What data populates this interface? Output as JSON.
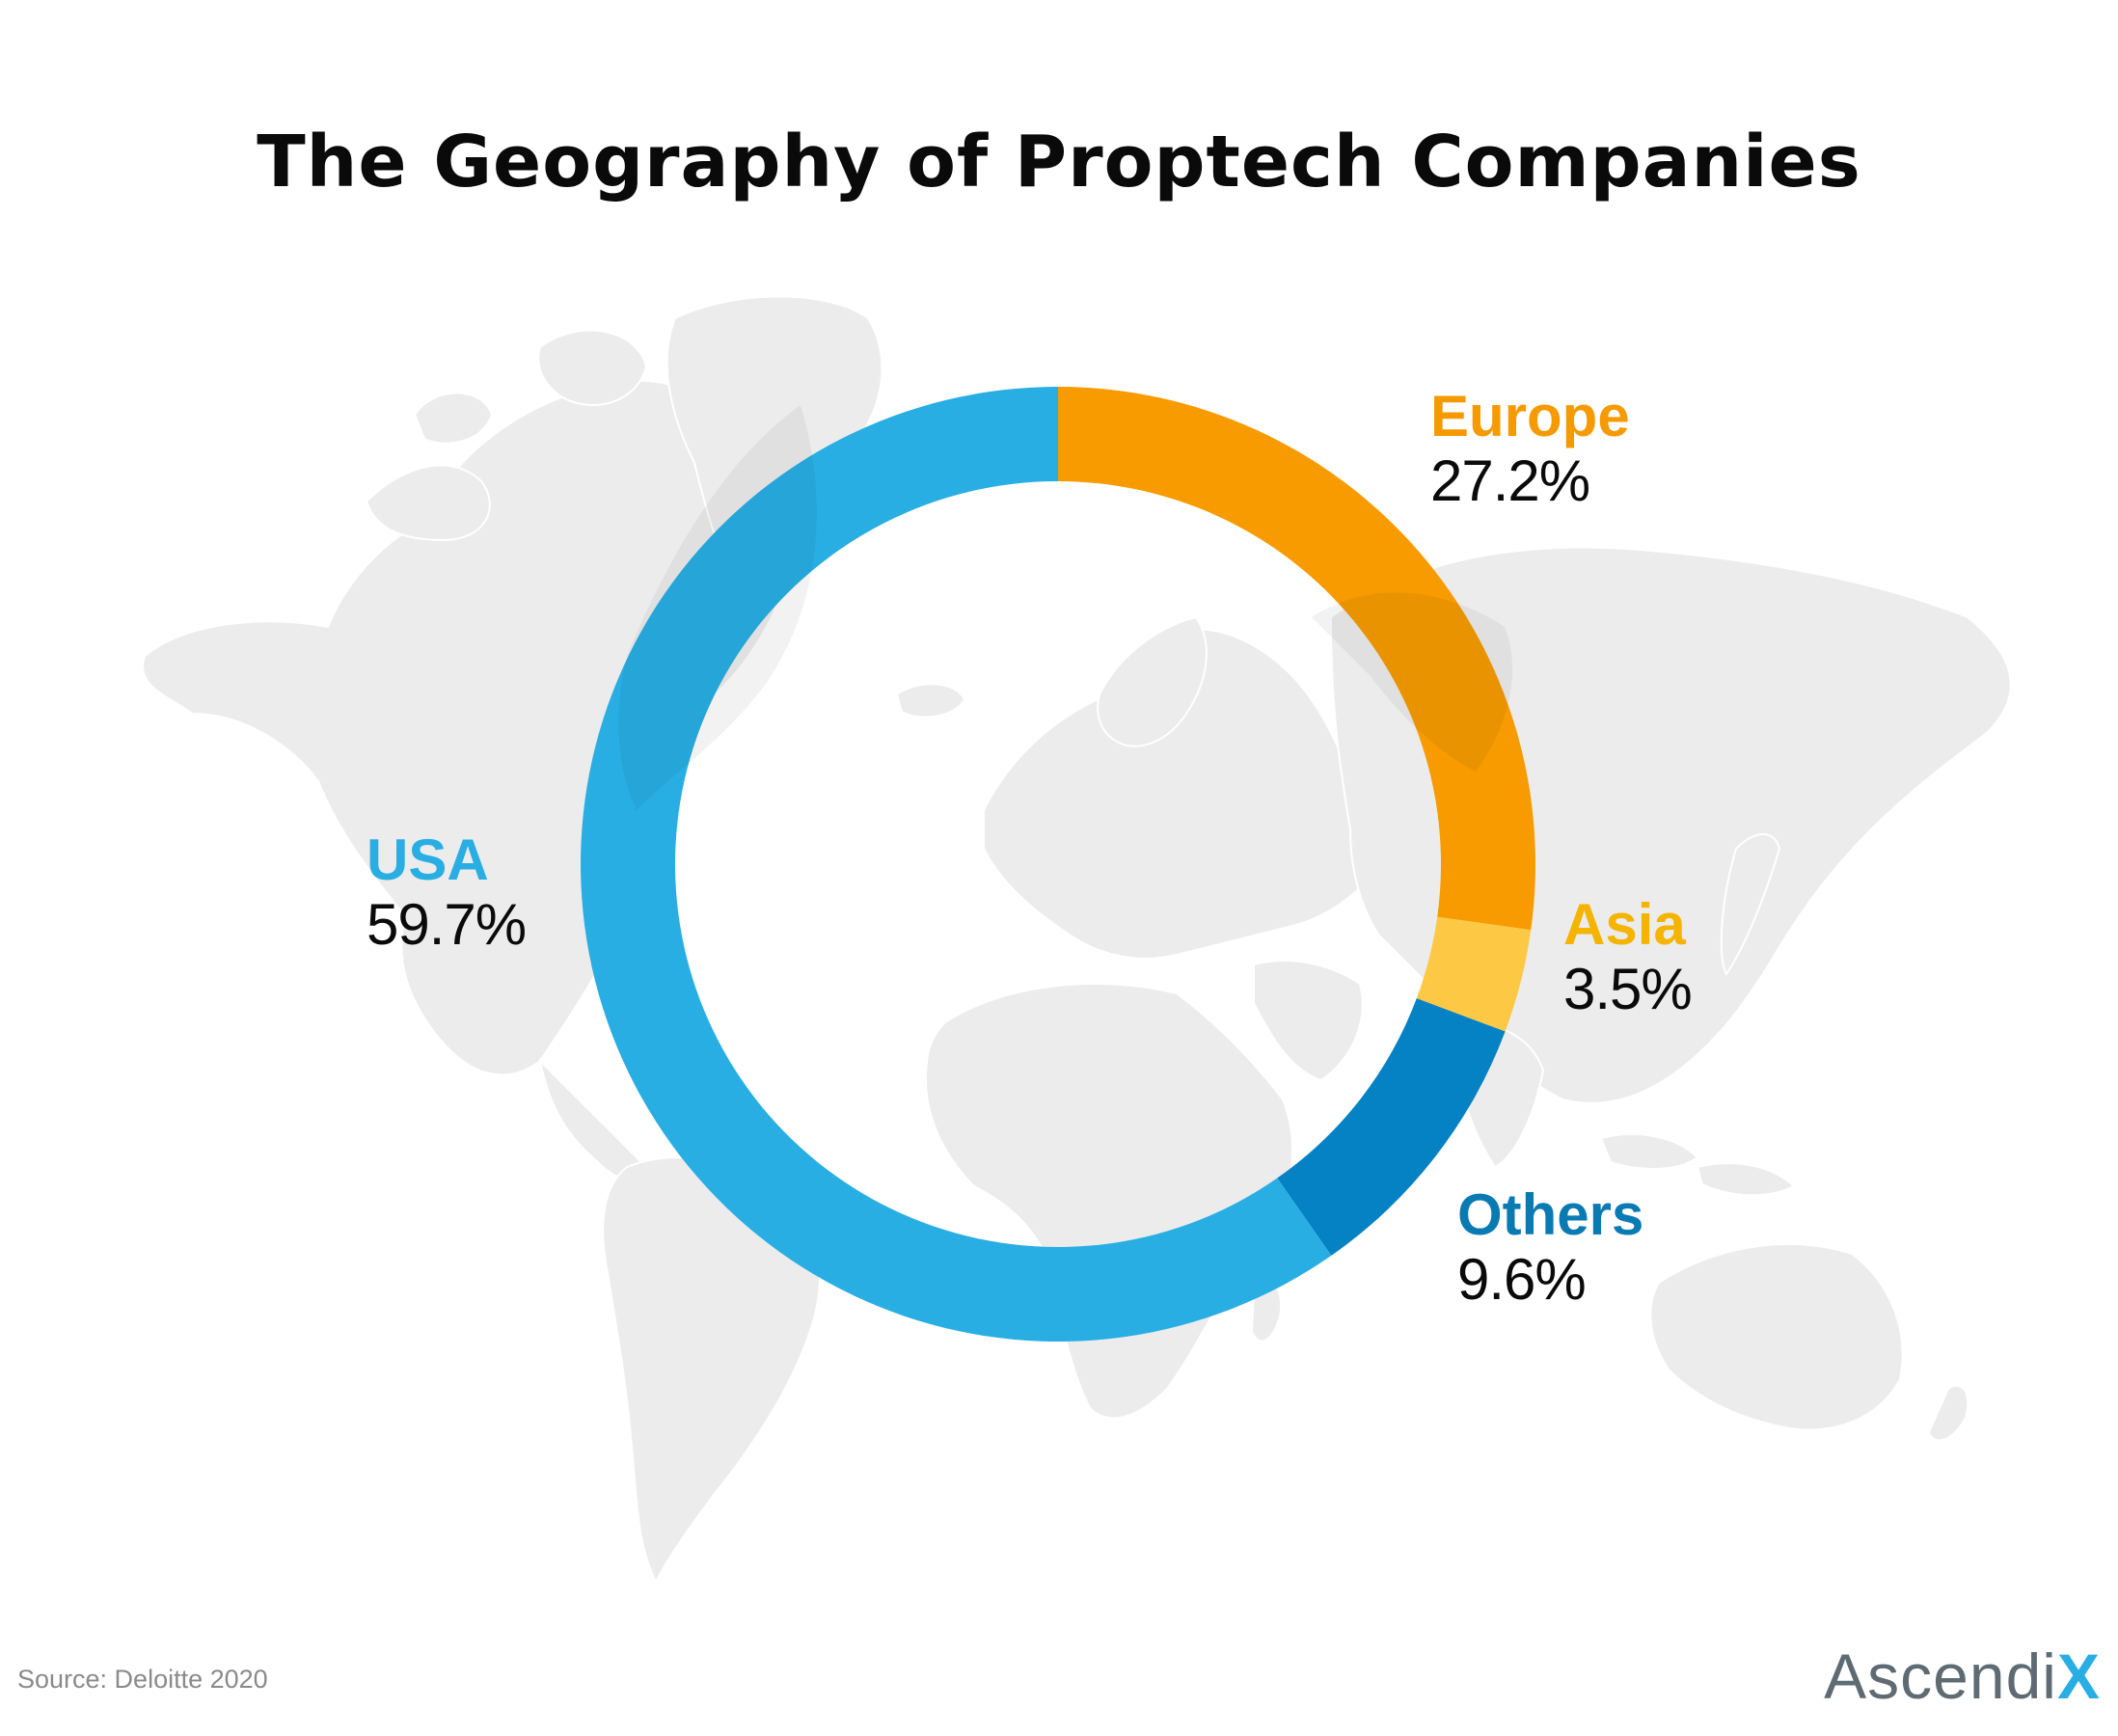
{
  "title": "The Geography of Proptech Companies",
  "source": "Source:  Deloitte 2020",
  "logo": {
    "main": "Ascendi",
    "accent": "X"
  },
  "chart_data": {
    "type": "pie",
    "style": "donut",
    "title": "The Geography of Proptech Companies",
    "unit": "%",
    "start": "top, clockwise",
    "series": [
      {
        "name": "Europe",
        "value": 27.2,
        "value_label": "27.2%",
        "color": "#f79b00"
      },
      {
        "name": "Asia",
        "value": 3.5,
        "value_label": "3.5%",
        "color": "#fdc843"
      },
      {
        "name": "Others",
        "value": 9.6,
        "value_label": "9.6%",
        "color": "#0482c4"
      },
      {
        "name": "USA",
        "value": 59.7,
        "value_label": "59.7%",
        "color": "#29aee4"
      }
    ],
    "label_colors": {
      "Europe": "#f59a00",
      "Asia": "#f4b400",
      "Others": "#0a7ab3",
      "USA": "#29aee4"
    },
    "background": "world-map-gray"
  },
  "colors": {
    "map_land": "#ececec",
    "map_overlay_on_ring": "rgba(0,0,0,0.06)",
    "title": "#0a0a0a",
    "source": "#8a8a8a",
    "logo": "#5f6b73",
    "logo_accent": "#29aee4"
  }
}
